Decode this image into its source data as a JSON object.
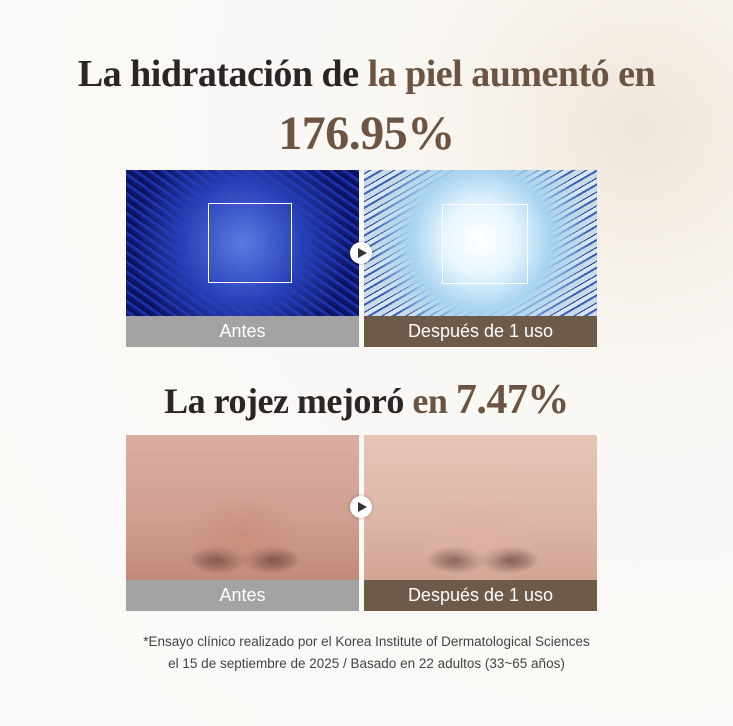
{
  "hydration": {
    "title_dark": "La hidratación de",
    "title_brown": "la piel aumentó en",
    "value": "176.95%",
    "before_label": "Antes",
    "after_label": "Después de 1 uso"
  },
  "redness": {
    "title_dark": "La rojez mejoró",
    "title_brown": "en",
    "value": "7.47%",
    "before_label": "Antes",
    "after_label": "Después de 1 uso"
  },
  "footnote": {
    "line1": "*Ensayo clínico realizado por el Korea Institute of Dermatological Sciences",
    "line2": "el 15 de septiembre de 2025 / Basado en 22 adultos (33~65 años)"
  },
  "colors": {
    "accent_brown": "#6b5441",
    "after_label_bg": "#6e5a48",
    "before_label_bg": "#a3a3a3"
  }
}
